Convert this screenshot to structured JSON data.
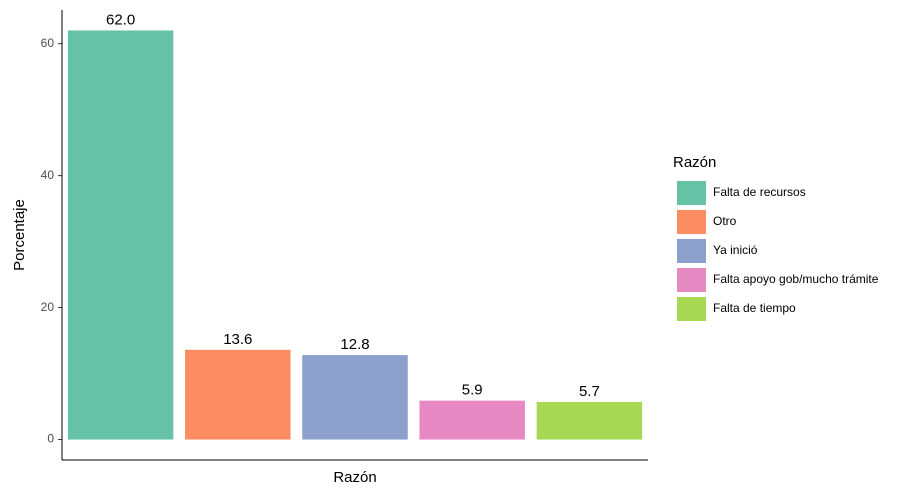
{
  "chart_data": {
    "type": "bar",
    "x_label": "Razón",
    "y_label": "Porcentaje",
    "legend_title": "Razón",
    "categories": [
      "Falta de recursos",
      "Otro",
      "Ya inició",
      "Falta apoyo gob/mucho trámite",
      "Falta de tiempo"
    ],
    "values": [
      62.0,
      13.6,
      12.8,
      5.9,
      5.7
    ],
    "value_labels": [
      "62.0",
      "13.6",
      "12.8",
      "5.9",
      "5.7"
    ],
    "colors": [
      "#66c2a5",
      "#fc8d62",
      "#8da0cb",
      "#e78ac3",
      "#a6d854"
    ],
    "ylim": [
      -3.1,
      65.1
    ],
    "yticks": [
      0,
      20,
      40,
      60
    ],
    "legend": "right"
  }
}
